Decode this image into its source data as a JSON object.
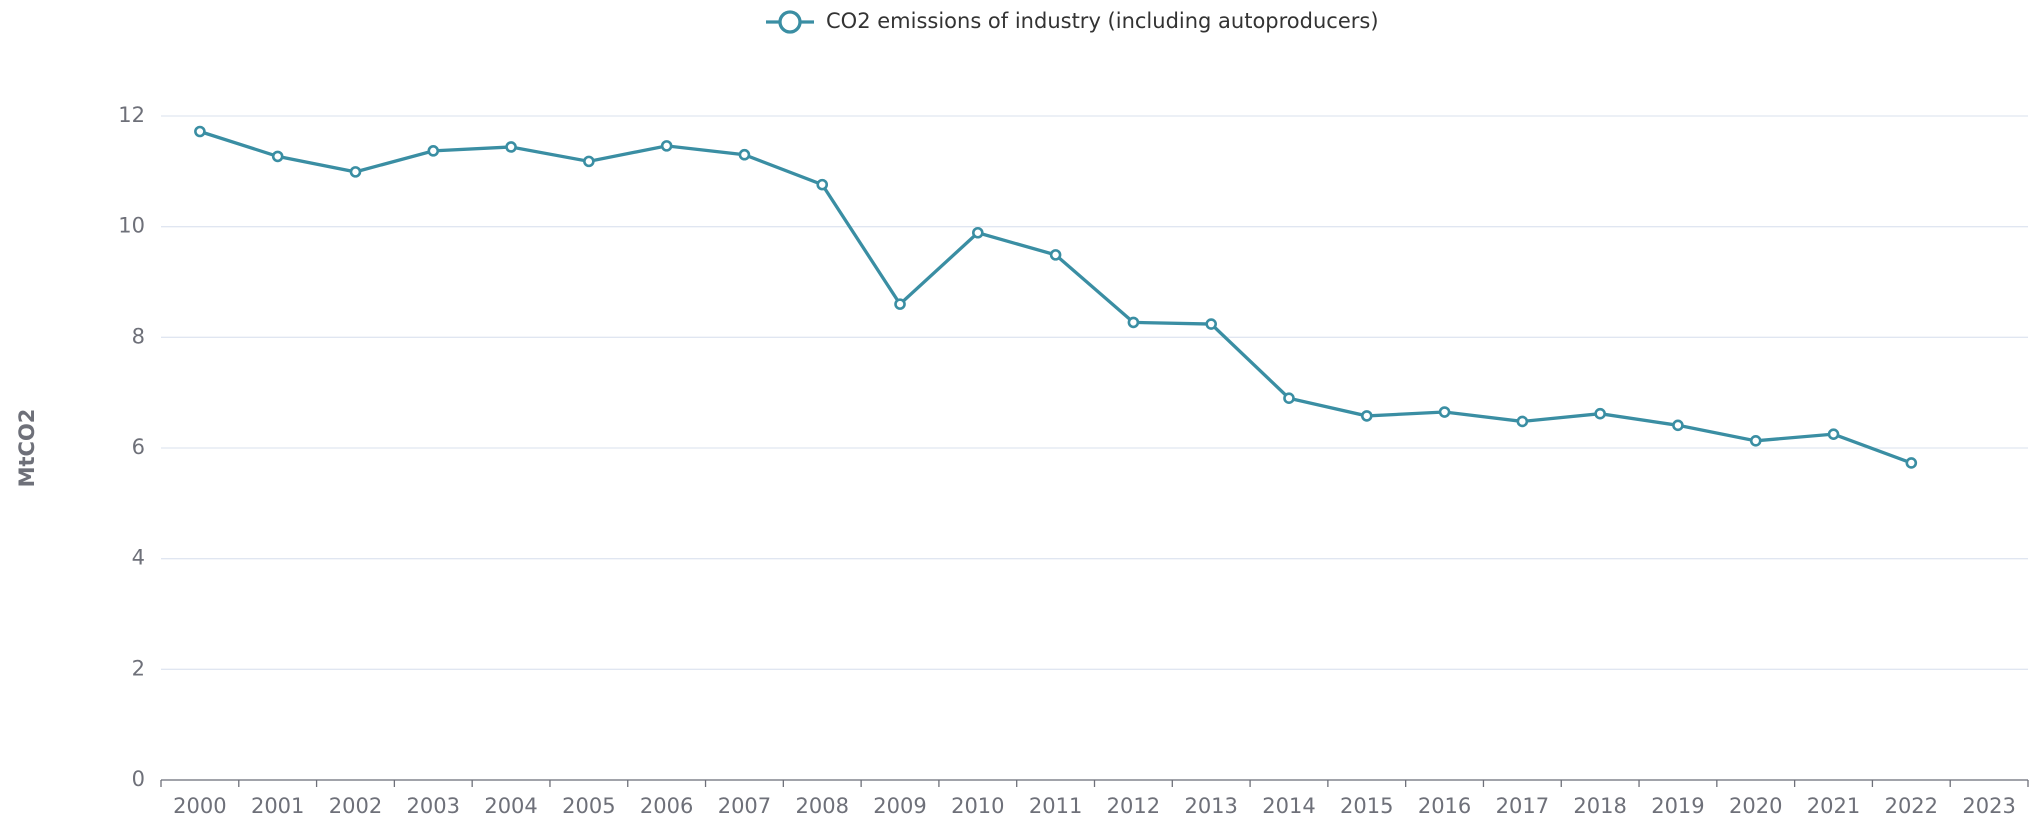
{
  "chart_data": {
    "type": "line",
    "y_label": "MtCO2",
    "categories": [
      "2000",
      "2001",
      "2002",
      "2003",
      "2004",
      "2005",
      "2006",
      "2007",
      "2008",
      "2009",
      "2010",
      "2011",
      "2012",
      "2013",
      "2014",
      "2015",
      "2016",
      "2017",
      "2018",
      "2019",
      "2020",
      "2021",
      "2022",
      "2023"
    ],
    "series": [
      {
        "name": "CO2 emissions of industry (including autoproducers)",
        "color": "#3a8ea3",
        "values": [
          11.72,
          11.27,
          10.99,
          11.37,
          11.44,
          11.18,
          11.46,
          11.3,
          10.76,
          8.6,
          9.89,
          9.49,
          8.27,
          8.24,
          6.9,
          6.58,
          6.65,
          6.48,
          6.62,
          6.41,
          6.13,
          6.25,
          5.73,
          null
        ]
      }
    ],
    "ylim": [
      0,
      12
    ],
    "yticks": [
      0,
      2,
      4,
      6,
      8,
      10,
      12
    ],
    "grid": true,
    "legend": "top"
  }
}
